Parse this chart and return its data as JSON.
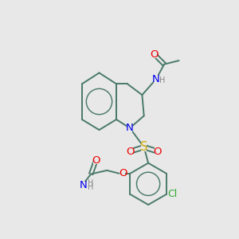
{
  "background_color": "#e8e8e8",
  "fig_size": [
    3.0,
    3.0
  ],
  "dpi": 100,
  "bond_color": "#4a7a6a",
  "bond_width": 1.4,
  "font_size": 8.5,
  "colors": {
    "C": "#4a7a6a",
    "N": "#0000ee",
    "O": "#ee0000",
    "S": "#ccaa00",
    "Cl": "#33aa33",
    "H": "#888888"
  }
}
